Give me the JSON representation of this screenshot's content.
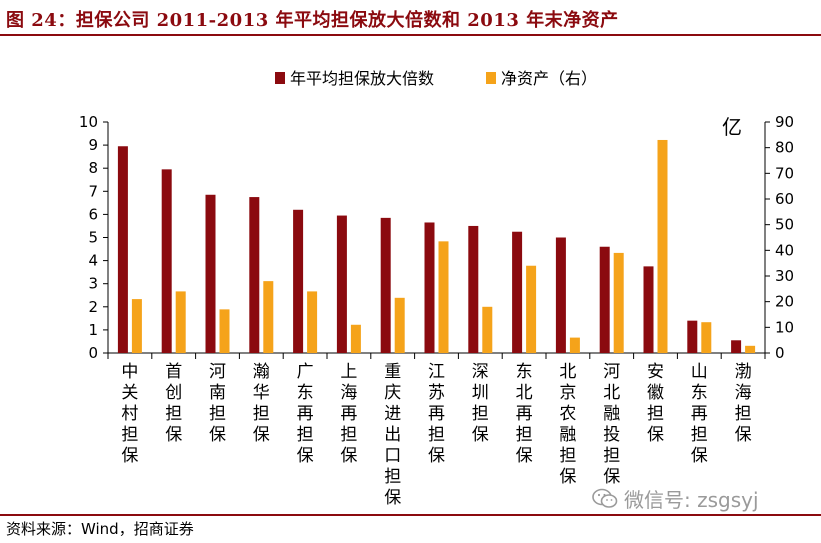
{
  "header": {
    "title": "图 24：担保公司 2011-2013 年平均担保放大倍数和 2013 年末净资产"
  },
  "footer": {
    "source": "资料来源：Wind，招商证券",
    "watermark": "微信号: zsgsyj"
  },
  "colors": {
    "brand": "#8B0A0F",
    "series_leverage": "#8B0A0F",
    "series_assets": "#F5A31A",
    "axis": "#000000",
    "watermark": "#9a9a9a"
  },
  "chart_data": {
    "type": "bar",
    "title": "",
    "categories": [
      "中关村担保",
      "首创担保",
      "河南担保",
      "瀚华担保",
      "广东再担保",
      "上海再担保",
      "重庆进出口担保",
      "江苏再担保",
      "深圳担保",
      "东北再担保",
      "北京农融担保",
      "河北融投担保",
      "安徽担保",
      "山东再担保",
      "渤海担保"
    ],
    "series": [
      {
        "name": "年平均担保放大倍数",
        "axis": "left",
        "values": [
          8.95,
          7.95,
          6.85,
          6.75,
          6.2,
          5.95,
          5.85,
          5.65,
          5.5,
          5.25,
          5.0,
          4.6,
          3.75,
          1.4,
          0.55
        ]
      },
      {
        "name": "净资产（右）",
        "axis": "right",
        "values": [
          21,
          24,
          17,
          28,
          24,
          11,
          21.5,
          43.5,
          18,
          34,
          6,
          39,
          83,
          12,
          2.8
        ]
      }
    ],
    "y_left": {
      "min": 0,
      "max": 10,
      "step": 1,
      "ticks": [
        "0",
        "1",
        "2",
        "3",
        "4",
        "5",
        "6",
        "7",
        "8",
        "9",
        "10"
      ]
    },
    "y_right": {
      "min": 0,
      "max": 90,
      "step": 10,
      "unit": "亿",
      "ticks": [
        "0",
        "10",
        "20",
        "30",
        "40",
        "50",
        "60",
        "70",
        "80",
        "90"
      ]
    },
    "legend": {
      "position": "top-center"
    },
    "grid": false
  }
}
